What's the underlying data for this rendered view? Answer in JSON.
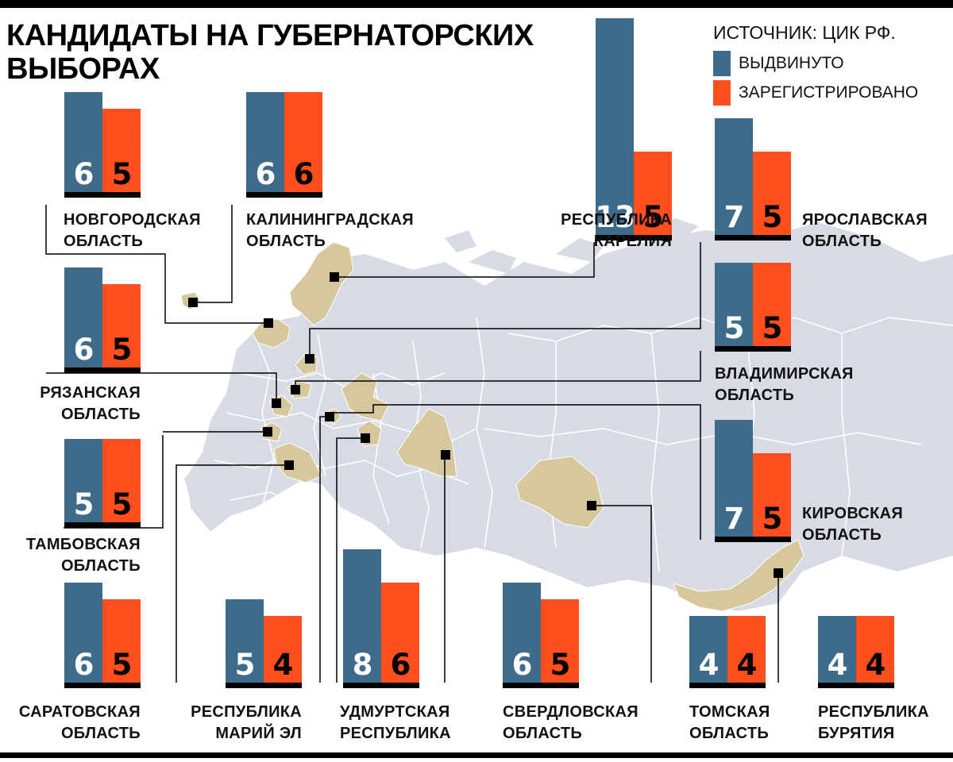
{
  "title": "КАНДИДАТЫ НА ГУБЕРНАТОРСКИХ ВЫБОРАХ",
  "source": "ИСТОЧНИК: ЦИК РФ.",
  "colors": {
    "nominated": "#3e6b8a",
    "registered": "#ff4f1f",
    "region": "#d6c79c",
    "map": "#d7dbe3"
  },
  "legend": [
    {
      "name": "nominated",
      "label": "ВЫДВИНУТО",
      "color": "#3e6b8a"
    },
    {
      "name": "registered",
      "label": "ЗАРЕГИСТРИРОВАНО",
      "color": "#ff4f1f"
    }
  ],
  "chart_data": {
    "type": "bar",
    "title": "КАНДИДАТЫ НА ГУБЕРНАТОРСКИХ ВЫБОРАХ",
    "categories": [
      "НОВГОРОДСКАЯ ОБЛАСТЬ",
      "КАЛИНИНГРАДСКАЯ ОБЛАСТЬ",
      "РЕСПУБЛИКА КАРЕЛИЯ",
      "ЯРОСЛАВСКАЯ ОБЛАСТЬ",
      "РЯЗАНСКАЯ ОБЛАСТЬ",
      "ВЛАДИМИРСКАЯ ОБЛАСТЬ",
      "ТАМБОВСКАЯ ОБЛАСТЬ",
      "КИРОВСКАЯ ОБЛАСТЬ",
      "САРАТОВСКАЯ ОБЛАСТЬ",
      "РЕСПУБЛИКА МАРИЙ ЭЛ",
      "УДМУРТСКАЯ РЕСПУБЛИКА",
      "СВЕРДЛОВСКАЯ ОБЛАСТЬ",
      "ТОМСКАЯ ОБЛАСТЬ",
      "РЕСПУБЛИКА БУРЯТИЯ"
    ],
    "series": [
      {
        "name": "ВЫДВИНУТО",
        "values": [
          6,
          6,
          13,
          7,
          6,
          5,
          5,
          7,
          6,
          5,
          8,
          6,
          4,
          4
        ]
      },
      {
        "name": "ЗАРЕГИСТРИРОВАНО",
        "values": [
          5,
          6,
          5,
          5,
          5,
          5,
          5,
          5,
          5,
          4,
          6,
          5,
          4,
          4
        ]
      }
    ],
    "legend_position": "top-right"
  },
  "regions": [
    {
      "id": "novgorod",
      "label": "НОВГОРОДСКАЯ\nОБЛАСТЬ"
    },
    {
      "id": "kaliningrad",
      "label": "КАЛИНИНГРАДСКАЯ\nОБЛАСТЬ"
    },
    {
      "id": "karelia",
      "label": "РЕСПУБЛИКА\nКАРЕЛИЯ"
    },
    {
      "id": "yaroslavl",
      "label": "ЯРОСЛАВСКАЯ\nОБЛАСТЬ"
    },
    {
      "id": "ryazan",
      "label": "РЯЗАНСКАЯ\nОБЛАСТЬ"
    },
    {
      "id": "vladimir",
      "label": "ВЛАДИМИРСКАЯ\nОБЛАСТЬ"
    },
    {
      "id": "tambov",
      "label": "ТАМБОВСКАЯ\nОБЛАСТЬ"
    },
    {
      "id": "kirov",
      "label": "КИРОВСКАЯ\nОБЛАСТЬ"
    },
    {
      "id": "saratov",
      "label": "САРАТОВСКАЯ\nОБЛАСТЬ"
    },
    {
      "id": "mari-el",
      "label": "РЕСПУБЛИКА\nМАРИЙ ЭЛ"
    },
    {
      "id": "udmurtia",
      "label": "УДМУРТСКАЯ\nРЕСПУБЛИКА"
    },
    {
      "id": "sverdlovsk",
      "label": "СВЕРДЛОВСКАЯ\nОБЛАСТЬ"
    },
    {
      "id": "tomsk",
      "label": "ТОМСКАЯ\nОБЛАСТЬ"
    },
    {
      "id": "buryatia",
      "label": "РЕСПУБЛИКА\nБУРЯТИЯ"
    }
  ]
}
